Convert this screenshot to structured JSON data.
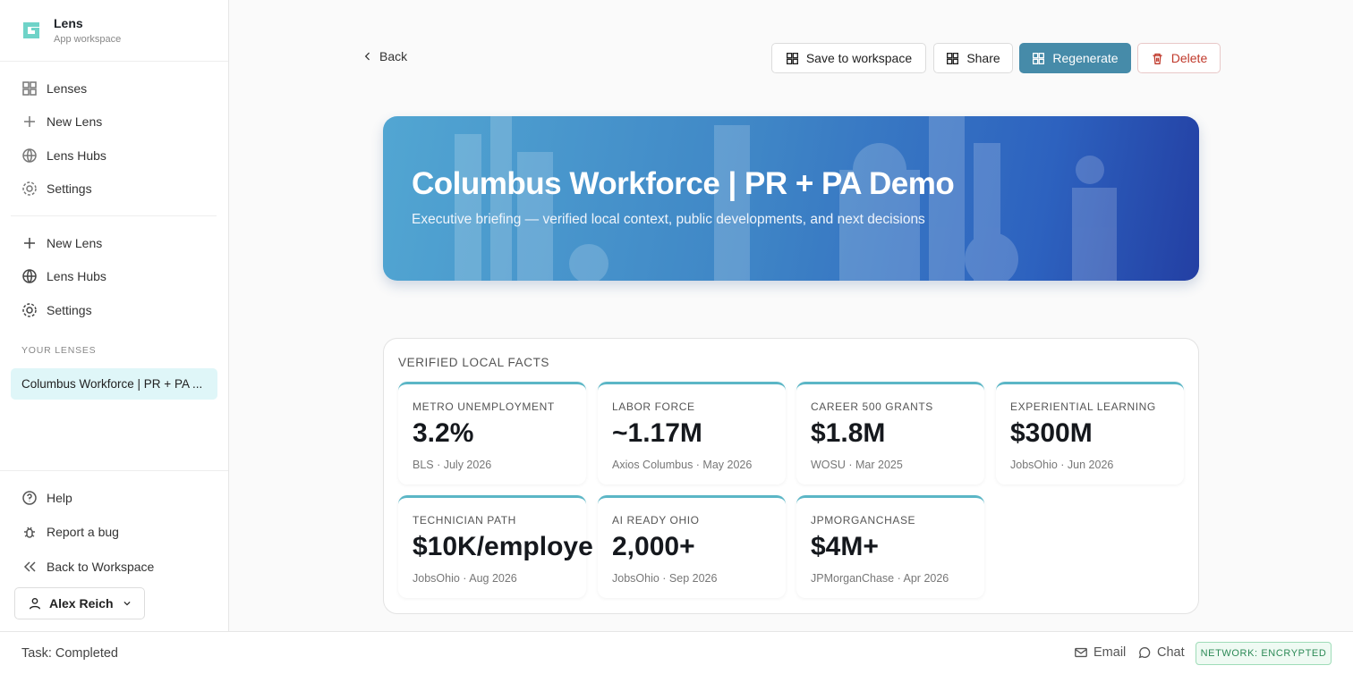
{
  "app": {
    "name": "Lens",
    "subtitle": "App workspace"
  },
  "nav_primary": [
    "Lenses",
    "New Lens",
    "Lens Hubs",
    "Settings"
  ],
  "nav_secondary": [
    "New Lens",
    "Lens Hubs",
    "Settings"
  ],
  "your_lenses": {
    "heading": "YOUR LENSES",
    "items": [
      "Columbus Workforce | PR + PA ..."
    ]
  },
  "sidebar_footer": [
    "Help",
    "Report a bug",
    "Back to Workspace"
  ],
  "user": "Alex Reich",
  "toolbar": {
    "back": "Back",
    "actions": [
      "Save to workspace",
      "Share",
      "Regenerate",
      "Delete"
    ]
  },
  "hero": {
    "title": "Columbus Workforce | PR + PA Demo",
    "subtitle": "Executive briefing — verified local context, public developments, and next decisions"
  },
  "facts": {
    "heading": "VERIFIED LOCAL FACTS",
    "cards": [
      {
        "label": "METRO UNEMPLOYMENT",
        "value": "3.2%",
        "source": "BLS · July 2026"
      },
      {
        "label": "LABOR FORCE",
        "value": "~1.17M",
        "source": "Axios Columbus · May 2026"
      },
      {
        "label": "CAREER 500 GRANTS",
        "value": "$1.8M",
        "source": "WOSU · Mar 2025"
      },
      {
        "label": "EXPERIENTIAL LEARNING",
        "value": "$300M",
        "source": "JobsOhio · Jun 2026"
      },
      {
        "label": "TECHNICIAN PATH",
        "value": "$10K/employe",
        "source": "JobsOhio · Aug 2026"
      },
      {
        "label": "AI READY OHIO",
        "value": "2,000+",
        "source": "JobsOhio · Sep 2026"
      },
      {
        "label": "JPMORGANCHASE",
        "value": "$4M+",
        "source": "JPMorganChase · Apr 2026"
      }
    ]
  },
  "status_bar": {
    "task": "Task: Completed",
    "links": [
      "Email",
      "Chat"
    ],
    "network": "NETWORK: ENCRYPTED"
  }
}
